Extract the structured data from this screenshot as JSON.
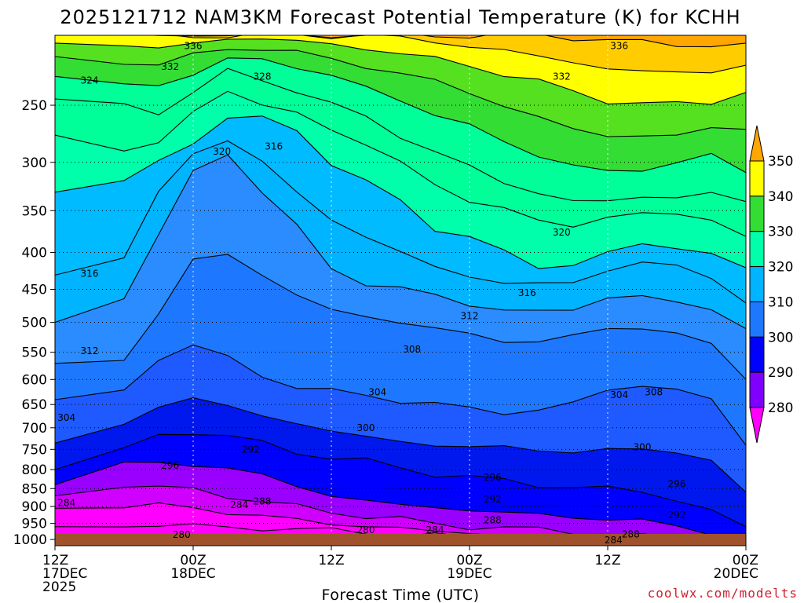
{
  "chart_data": {
    "type": "heatmap",
    "title": "2025121712 NAM3KM Forecast Potential Temperature (K) for KCHH",
    "xlabel": "Forecast Time (UTC)",
    "ylabel": "",
    "credit": "coolwx.com/modelts",
    "x_ticks": [
      {
        "hours": 0,
        "lines": [
          "12Z",
          "17DEC",
          "2025"
        ]
      },
      {
        "hours": 12,
        "lines": [
          "00Z",
          "18DEC"
        ]
      },
      {
        "hours": 24,
        "lines": [
          "12Z"
        ]
      },
      {
        "hours": 36,
        "lines": [
          "00Z",
          "19DEC"
        ]
      },
      {
        "hours": 48,
        "lines": [
          "12Z"
        ]
      },
      {
        "hours": 60,
        "lines": [
          "00Z",
          "20DEC"
        ]
      }
    ],
    "x_range_hours": [
      0,
      60
    ],
    "y_ticks": [
      "250",
      "300",
      "350",
      "400",
      "450",
      "500",
      "550",
      "600",
      "650",
      "700",
      "750",
      "800",
      "850",
      "900",
      "950",
      "1000"
    ],
    "y_range_hpa": [
      200,
      1020
    ],
    "y_scale": "log-pressure (inverted)",
    "grid": true,
    "colorbar": {
      "position": "right",
      "levels": [
        "280",
        "290",
        "300",
        "310",
        "320",
        "330",
        "340",
        "350"
      ],
      "colors": [
        "#ff00ff",
        "#cc00ff",
        "#7f00ff",
        "#0000ff",
        "#0a4aff",
        "#1e78ff",
        "#00b4ff",
        "#00ffaa",
        "#33dd33",
        "#ffff00",
        "#ffcc00",
        "#ffa600"
      ]
    },
    "times": [
      0,
      6,
      9,
      12,
      15,
      18,
      21,
      24,
      27,
      30,
      33,
      36,
      39,
      42,
      45,
      48,
      51,
      54,
      57,
      60
    ],
    "contour_isotherms_K": [
      280,
      284,
      288,
      292,
      296,
      300,
      304,
      308,
      312,
      316,
      320,
      324,
      328,
      332,
      336,
      340,
      344,
      348
    ],
    "isotherm_pressures_hPa": {
      "280": [
        960,
        958,
        957,
        956,
        962,
        965,
        968,
        972,
        976,
        985,
        990,
        995,
        998,
        1000,
        1002,
        1005,
        1005,
        1005,
        1005,
        1005
      ],
      "284": [
        905,
        900,
        900,
        902,
        915,
        930,
        940,
        950,
        958,
        965,
        975,
        980,
        985,
        990,
        995,
        1000,
        1003,
        1005,
        1005,
        1005
      ],
      "288": [
        870,
        845,
        848,
        848,
        870,
        890,
        900,
        912,
        930,
        940,
        950,
        958,
        965,
        970,
        975,
        985,
        990,
        995,
        1000,
        1003
      ],
      "292": [
        840,
        790,
        780,
        785,
        800,
        815,
        840,
        870,
        885,
        895,
        902,
        910,
        918,
        925,
        930,
        935,
        945,
        960,
        975,
        990
      ],
      "296": [
        800,
        750,
        715,
        710,
        720,
        735,
        755,
        770,
        780,
        795,
        810,
        820,
        830,
        840,
        845,
        850,
        860,
        880,
        910,
        960
      ],
      "300": [
        735,
        690,
        650,
        640,
        655,
        670,
        690,
        710,
        720,
        730,
        740,
        745,
        745,
        750,
        755,
        755,
        750,
        750,
        780,
        860
      ],
      "304": [
        640,
        620,
        560,
        540,
        560,
        590,
        615,
        625,
        630,
        640,
        650,
        660,
        665,
        660,
        650,
        620,
        610,
        620,
        640,
        740
      ],
      "308": [
        570,
        560,
        490,
        410,
        400,
        430,
        460,
        480,
        490,
        500,
        510,
        520,
        530,
        530,
        525,
        510,
        505,
        520,
        540,
        600
      ],
      "312": [
        500,
        460,
        380,
        310,
        290,
        330,
        370,
        420,
        440,
        450,
        460,
        470,
        480,
        485,
        480,
        460,
        460,
        470,
        480,
        510
      ],
      "316": [
        430,
        410,
        330,
        290,
        280,
        300,
        330,
        360,
        380,
        400,
        420,
        430,
        440,
        445,
        440,
        420,
        415,
        420,
        430,
        470
      ],
      "320": [
        330,
        320,
        300,
        280,
        260,
        262,
        270,
        300,
        320,
        340,
        370,
        380,
        400,
        420,
        415,
        400,
        390,
        395,
        400,
        420
      ],
      "324": [
        275,
        290,
        280,
        255,
        240,
        250,
        255,
        270,
        285,
        300,
        320,
        340,
        350,
        360,
        365,
        360,
        355,
        350,
        360,
        380
      ],
      "328": [
        245,
        250,
        255,
        240,
        225,
        230,
        238,
        250,
        260,
        275,
        290,
        305,
        320,
        330,
        340,
        340,
        335,
        335,
        330,
        340
      ],
      "332": [
        228,
        232,
        235,
        228,
        215,
        215,
        222,
        228,
        236,
        245,
        258,
        268,
        280,
        292,
        305,
        310,
        305,
        300,
        295,
        310
      ],
      "336": [
        214,
        217,
        220,
        214,
        208,
        208,
        212,
        216,
        220,
        226,
        232,
        240,
        250,
        260,
        270,
        276,
        275,
        275,
        270,
        270
      ],
      "340": [
        205,
        207,
        209,
        205,
        202,
        202,
        204,
        206,
        208,
        212,
        216,
        220,
        226,
        232,
        240,
        246,
        248,
        250,
        248,
        240
      ],
      "344": [
        200,
        200,
        201,
        200,
        200,
        200,
        200,
        200,
        200,
        202,
        204,
        207,
        210,
        214,
        218,
        222,
        224,
        226,
        225,
        220
      ],
      "348": [
        200,
        200,
        200,
        200,
        200,
        200,
        200,
        200,
        200,
        200,
        200,
        200,
        200,
        200,
        201,
        203,
        205,
        206,
        206,
        205
      ]
    },
    "contour_labels": [
      {
        "text": "336",
        "t": 12.0,
        "p": 207
      },
      {
        "text": "332",
        "t": 10.0,
        "p": 221
      },
      {
        "text": "324",
        "t": 3.0,
        "p": 231
      },
      {
        "text": "328",
        "t": 18.0,
        "p": 228
      },
      {
        "text": "336",
        "t": 49.0,
        "p": 207
      },
      {
        "text": "332",
        "t": 44.0,
        "p": 228
      },
      {
        "text": "320",
        "t": 14.5,
        "p": 290
      },
      {
        "text": "316",
        "t": 19.0,
        "p": 285
      },
      {
        "text": "320",
        "t": 44.0,
        "p": 375
      },
      {
        "text": "316",
        "t": 3.0,
        "p": 428
      },
      {
        "text": "316",
        "t": 41.0,
        "p": 455
      },
      {
        "text": "312",
        "t": 36.0,
        "p": 490
      },
      {
        "text": "312",
        "t": 3.0,
        "p": 548
      },
      {
        "text": "308",
        "t": 31.0,
        "p": 545
      },
      {
        "text": "304",
        "t": 28.0,
        "p": 625
      },
      {
        "text": "304",
        "t": 49.0,
        "p": 630
      },
      {
        "text": "308",
        "t": 52.0,
        "p": 625
      },
      {
        "text": "304",
        "t": 1.0,
        "p": 678
      },
      {
        "text": "300",
        "t": 27.0,
        "p": 700
      },
      {
        "text": "300",
        "t": 51.0,
        "p": 745
      },
      {
        "text": "292",
        "t": 17.0,
        "p": 750
      },
      {
        "text": "296",
        "t": 10.0,
        "p": 790
      },
      {
        "text": "296",
        "t": 38.0,
        "p": 820
      },
      {
        "text": "296",
        "t": 54.0,
        "p": 838
      },
      {
        "text": "292",
        "t": 38.0,
        "p": 880
      },
      {
        "text": "292",
        "t": 54.0,
        "p": 925
      },
      {
        "text": "284",
        "t": 1.0,
        "p": 890
      },
      {
        "text": "284",
        "t": 16.0,
        "p": 895
      },
      {
        "text": "288",
        "t": 18.0,
        "p": 885
      },
      {
        "text": "288",
        "t": 38.0,
        "p": 940
      },
      {
        "text": "280",
        "t": 27.0,
        "p": 970
      },
      {
        "text": "284",
        "t": 33.0,
        "p": 970
      },
      {
        "text": "280",
        "t": 11.0,
        "p": 985
      },
      {
        "text": "288",
        "t": 50.0,
        "p": 983
      },
      {
        "text": "284",
        "t": 48.5,
        "p": 1002
      }
    ]
  }
}
